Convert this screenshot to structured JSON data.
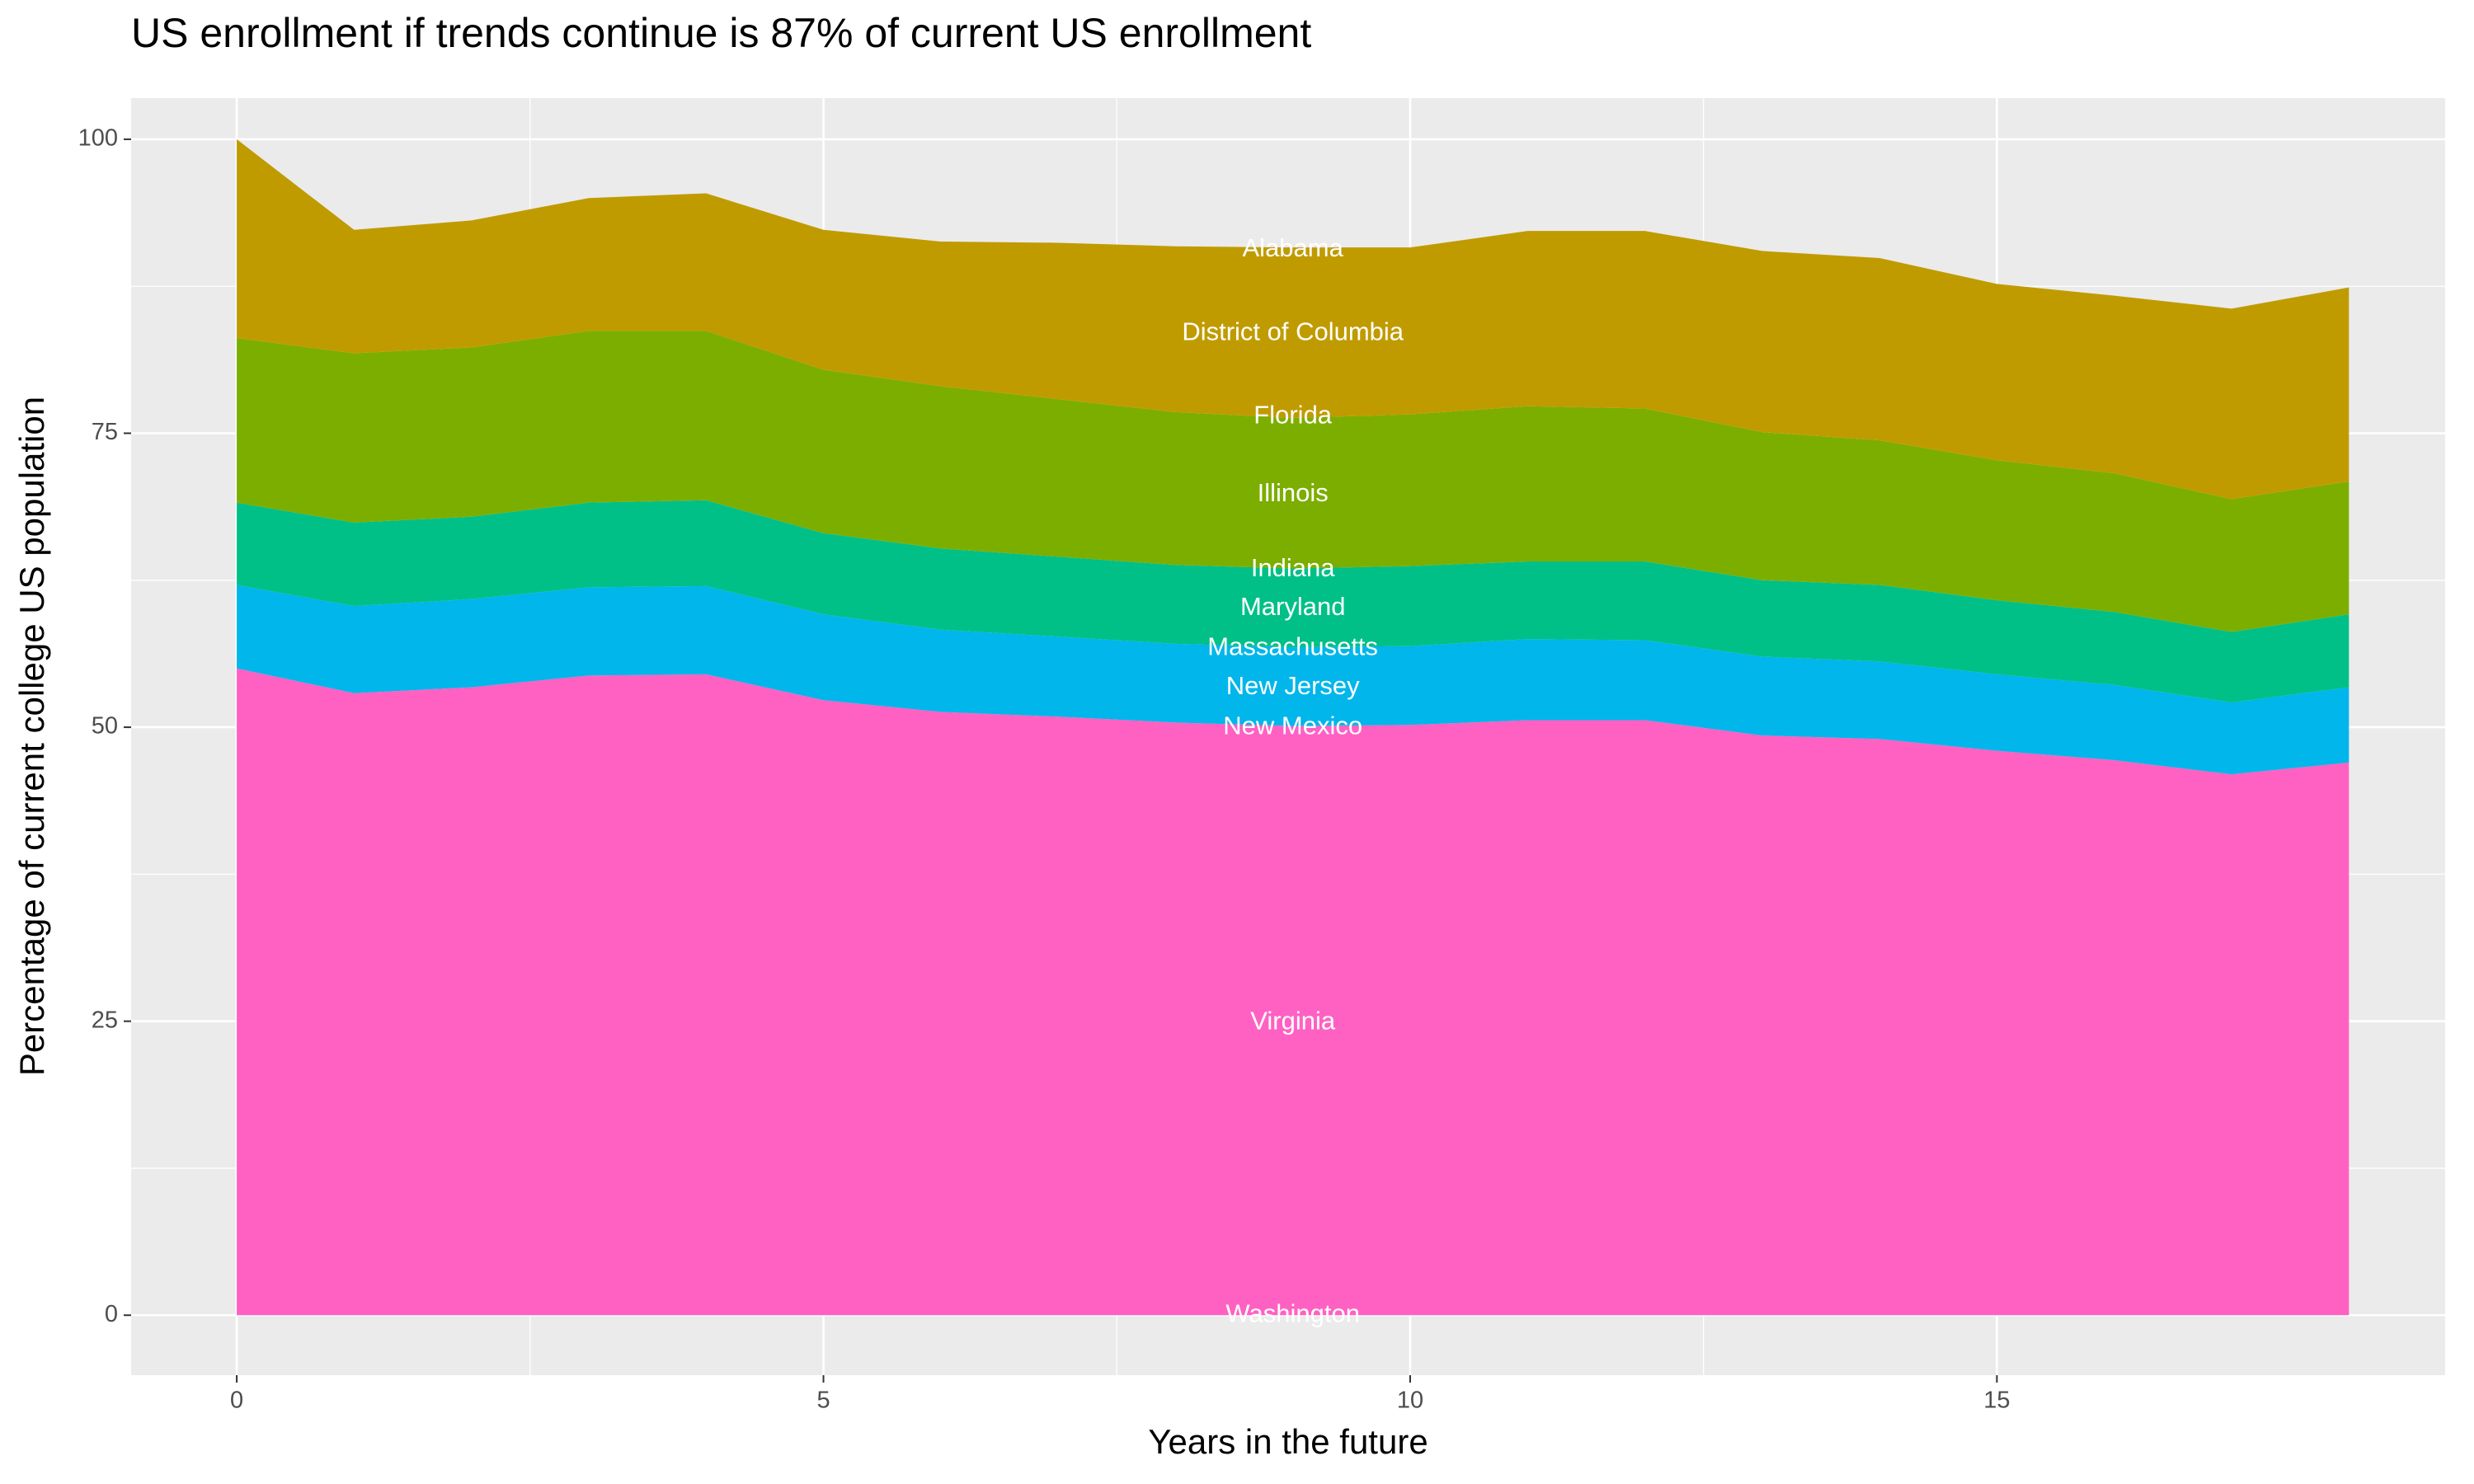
{
  "chart_data": {
    "type": "stacked_area",
    "title": "US enrollment if trends continue is 87% of current US enrollment",
    "x_label": "Years in the future",
    "y_label": "Percentage of current college US population",
    "x": [
      0,
      1,
      2,
      3,
      4,
      5,
      6,
      7,
      8,
      9,
      10,
      11,
      12,
      13,
      14,
      15,
      16,
      17,
      18
    ],
    "series": [
      {
        "color": "#ff61c3",
        "values": [
          55.0,
          52.9,
          53.4,
          54.4,
          54.5,
          52.3,
          51.3,
          50.9,
          50.4,
          50.1,
          50.2,
          50.6,
          50.6,
          49.3,
          49.0,
          48.0,
          47.2,
          46.0,
          47.0
        ]
      },
      {
        "color": "#00b6eb",
        "values": [
          7.1,
          7.4,
          7.5,
          7.5,
          7.5,
          7.3,
          7.0,
          6.8,
          6.7,
          6.7,
          6.7,
          6.9,
          6.8,
          6.7,
          6.6,
          6.5,
          6.4,
          6.1,
          6.4
        ]
      },
      {
        "color": "#00c087",
        "values": [
          7.0,
          7.1,
          7.0,
          7.2,
          7.3,
          6.9,
          6.9,
          6.8,
          6.7,
          6.7,
          6.8,
          6.6,
          6.7,
          6.5,
          6.5,
          6.3,
          6.2,
          6.0,
          6.2
        ]
      },
      {
        "color": "#7cae00",
        "values": [
          14.0,
          14.4,
          14.4,
          14.6,
          14.4,
          13.9,
          13.8,
          13.4,
          13.0,
          12.8,
          12.9,
          13.2,
          13.0,
          12.6,
          12.3,
          11.9,
          11.8,
          11.3,
          11.3
        ]
      },
      {
        "color": "#c09b00",
        "values": [
          16.9,
          10.5,
          10.8,
          11.3,
          11.7,
          11.9,
          12.3,
          13.3,
          14.1,
          14.5,
          14.2,
          14.9,
          15.1,
          15.4,
          15.5,
          15.0,
          15.1,
          16.2,
          16.5
        ]
      }
    ],
    "annotations": [
      {
        "text": "Alabama",
        "x": 9,
        "y": 90.6
      },
      {
        "text": "District of Columbia",
        "x": 9,
        "y": 83.5
      },
      {
        "text": "Florida",
        "x": 9,
        "y": 76.4
      },
      {
        "text": "Illinois",
        "x": 9,
        "y": 69.8
      },
      {
        "text": "Indiana",
        "x": 9,
        "y": 63.4
      },
      {
        "text": "Maryland",
        "x": 9,
        "y": 60.1
      },
      {
        "text": "Massachusetts",
        "x": 9,
        "y": 56.7
      },
      {
        "text": "New Jersey",
        "x": 9,
        "y": 53.4
      },
      {
        "text": "New Mexico",
        "x": 9,
        "y": 50.0
      },
      {
        "text": "Virginia",
        "x": 9,
        "y": 24.9
      },
      {
        "text": "Washington",
        "x": 9,
        "y": 0
      }
    ],
    "xlim": [
      -0.9,
      18.82
    ],
    "xticks": [
      0,
      5,
      10,
      15
    ],
    "ylim": [
      -5.1,
      103.5
    ],
    "yticks": [
      0,
      25,
      50,
      75,
      100
    ],
    "grid": true
  }
}
